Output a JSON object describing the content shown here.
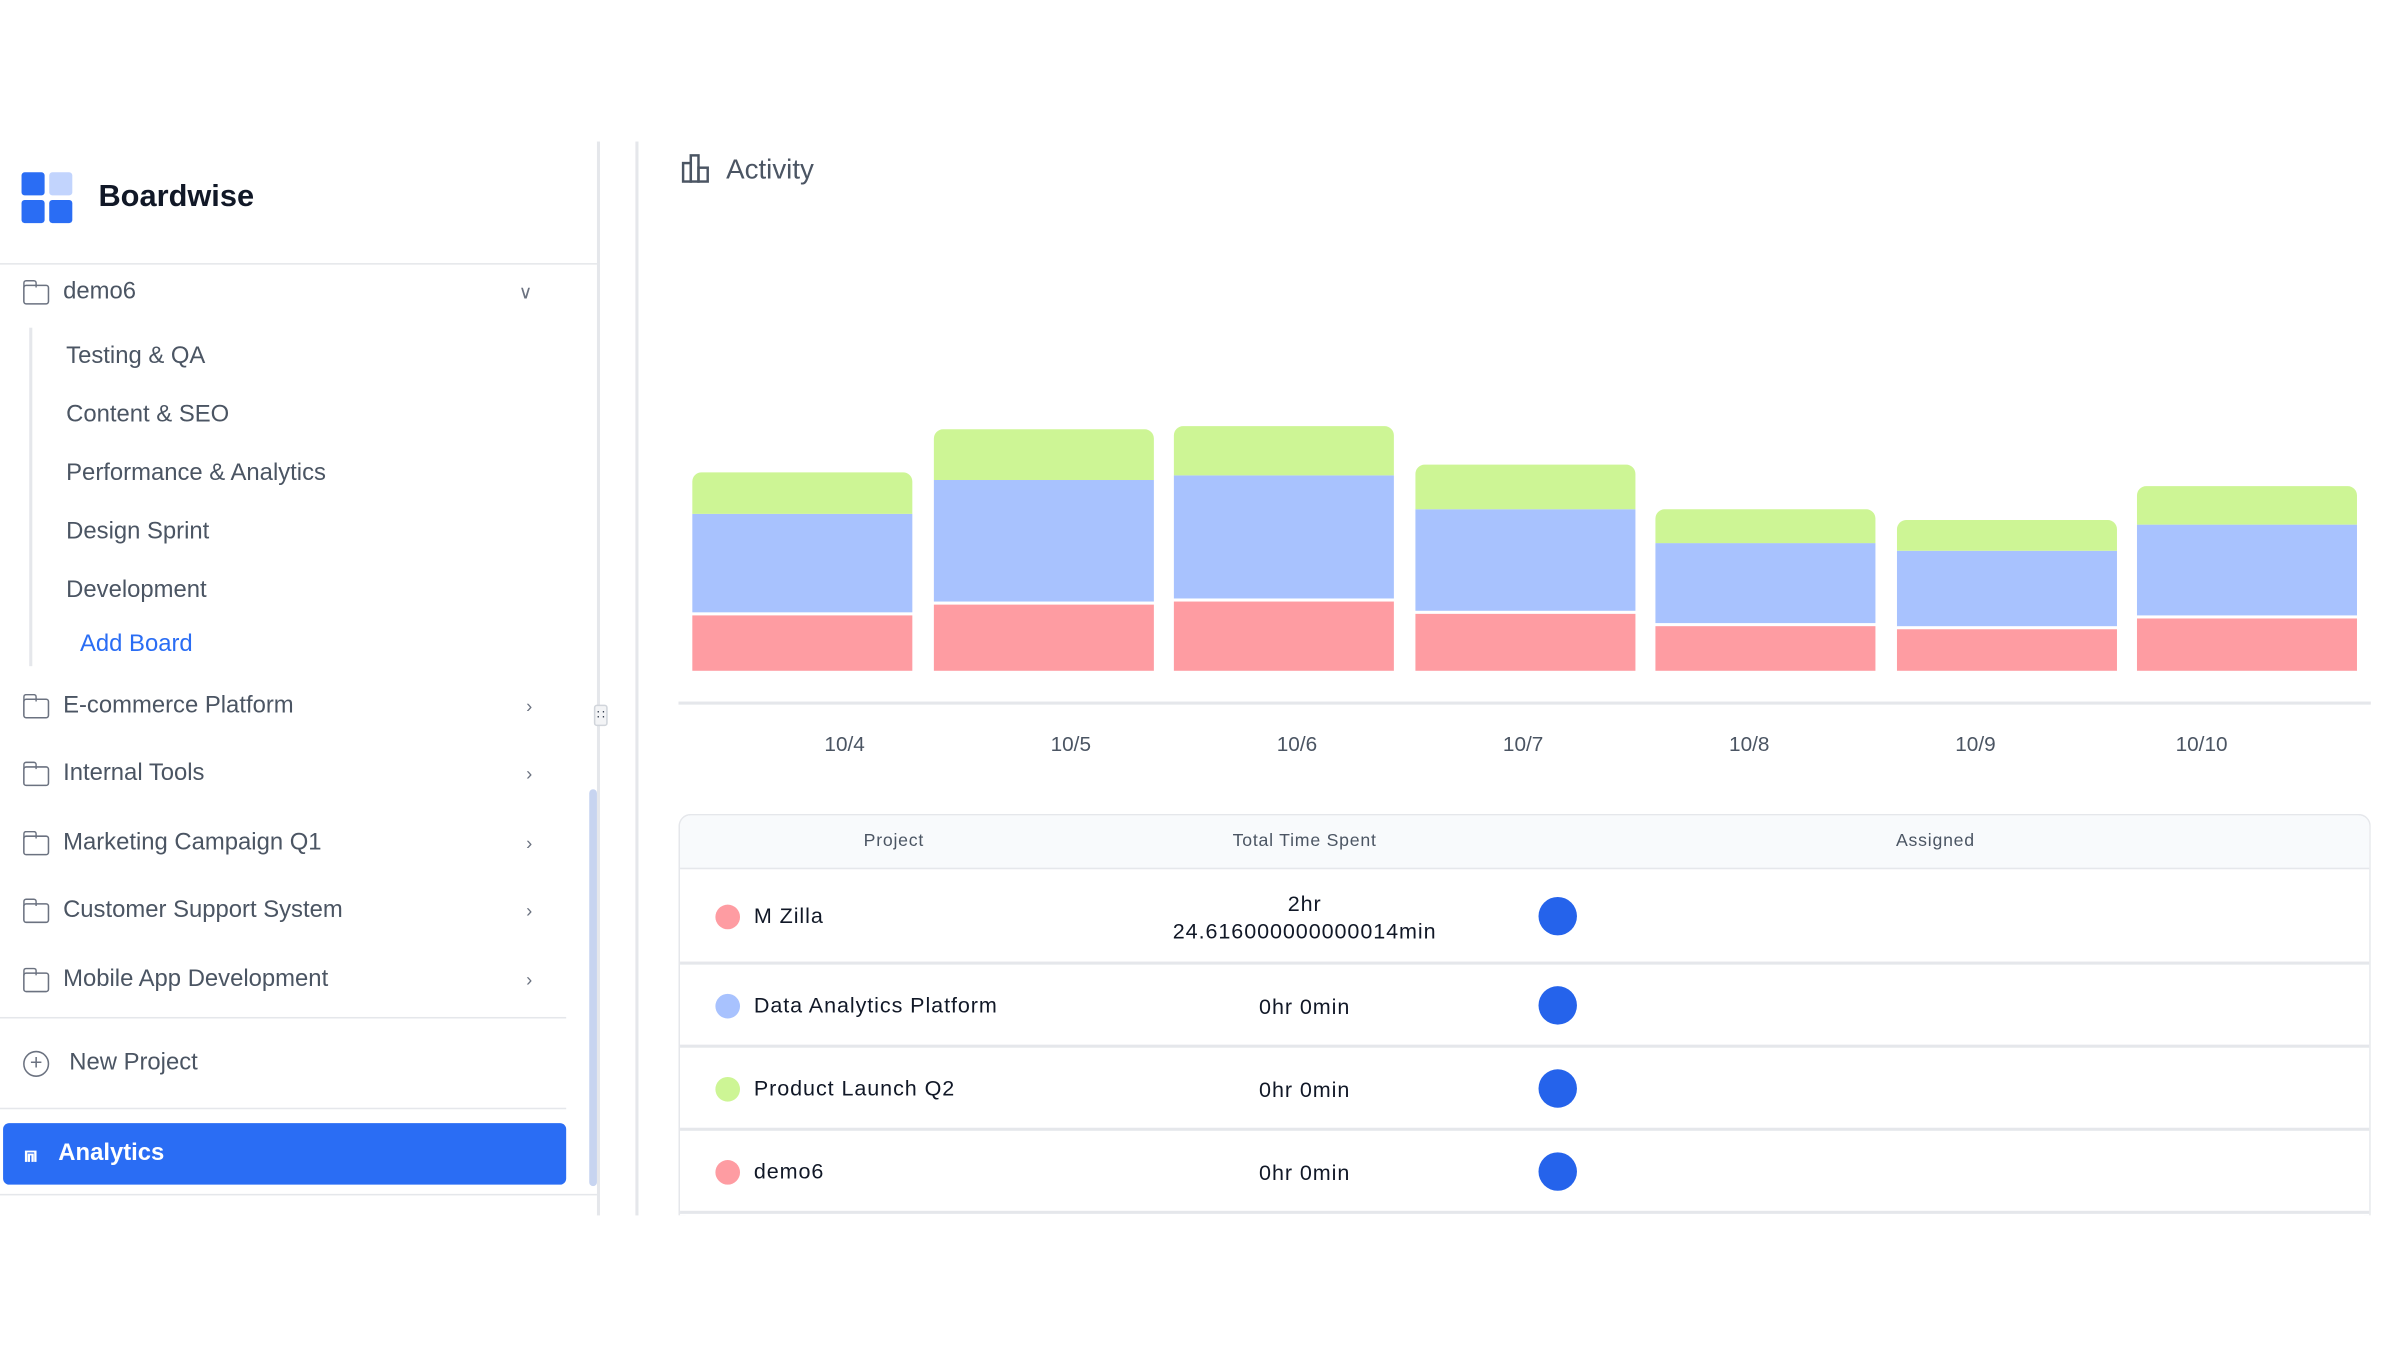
{
  "app": {
    "name": "Boardwise"
  },
  "sidebar": {
    "expanded_project": "demo6",
    "boards": [
      "Testing & QA",
      "Content & SEO",
      "Performance & Analytics",
      "Design Sprint",
      "Development"
    ],
    "add_board": "Add Board",
    "projects": [
      "E-commerce Platform",
      "Internal Tools",
      "Marketing Campaign Q1",
      "Customer Support System",
      "Mobile App Development"
    ],
    "new_project": "New Project",
    "analytics": "Analytics"
  },
  "main": {
    "title": "Activity"
  },
  "colors": {
    "accent": "#2a6df4",
    "red": "#fe9ca2",
    "blue": "#a8c2fe",
    "green": "#cdf595"
  },
  "chart_data": {
    "type": "bar",
    "stacked": true,
    "grid": false,
    "legend": "none",
    "categories": [
      "10/4",
      "10/5",
      "10/6",
      "10/7",
      "10/8",
      "10/9",
      "10/10"
    ],
    "series": [
      {
        "color": "#fe9ca2",
        "values": [
          38,
          45,
          47,
          39,
          31,
          29,
          36
        ]
      },
      {
        "color": "#a8c2fe",
        "values": [
          66,
          81,
          82,
          68,
          54,
          51,
          61
        ]
      },
      {
        "color": "#cdf595",
        "values": [
          27,
          33,
          32,
          29,
          22,
          20,
          25
        ]
      }
    ]
  },
  "table": {
    "headers": [
      "Project",
      "Total Time Spent",
      "Assigned"
    ],
    "rows": [
      {
        "project": "M Zilla",
        "color": "#fe9ca2",
        "time_line1": "2hr",
        "time_line2": "24.616000000000014min"
      },
      {
        "project": "Data Analytics Platform",
        "color": "#a8c2fe",
        "time_line1": "0hr 0min",
        "time_line2": ""
      },
      {
        "project": "Product Launch Q2",
        "color": "#cdf595",
        "time_line1": "0hr 0min",
        "time_line2": ""
      },
      {
        "project": "demo6",
        "color": "#fe9ca2",
        "time_line1": "0hr 0min",
        "time_line2": ""
      }
    ]
  }
}
